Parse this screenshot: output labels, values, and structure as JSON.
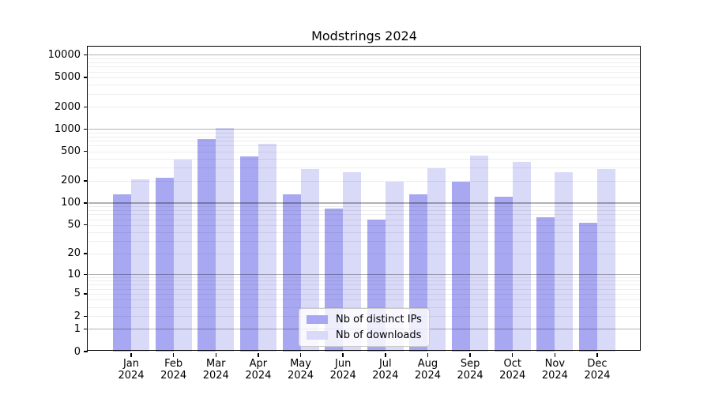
{
  "chart_data": {
    "type": "bar",
    "title": "Modstrings 2024",
    "categories": [
      "Jan 2024",
      "Feb 2024",
      "Mar 2024",
      "Apr 2024",
      "May 2024",
      "Jun 2024",
      "Jul 2024",
      "Aug 2024",
      "Sep 2024",
      "Oct 2024",
      "Nov 2024",
      "Dec 2024"
    ],
    "series": [
      {
        "name": "Nb of distinct IPs",
        "color": "#a8a8f2",
        "values": [
          130,
          222,
          730,
          430,
          130,
          85,
          59,
          130,
          193,
          121,
          64,
          54
        ]
      },
      {
        "name": "Nb of downloads",
        "color": "#d9d9f8",
        "values": [
          210,
          390,
          1040,
          630,
          292,
          265,
          197,
          298,
          437,
          360,
          259,
          292
        ]
      }
    ],
    "xlabel": "",
    "ylabel": "",
    "yscale": "log10(y+1)",
    "ylim": [
      0,
      12700
    ],
    "yticks": [
      0,
      1,
      2,
      5,
      10,
      20,
      50,
      100,
      200,
      500,
      1000,
      2000,
      5000,
      10000
    ],
    "grid": "on",
    "legend_position": "lower center"
  }
}
